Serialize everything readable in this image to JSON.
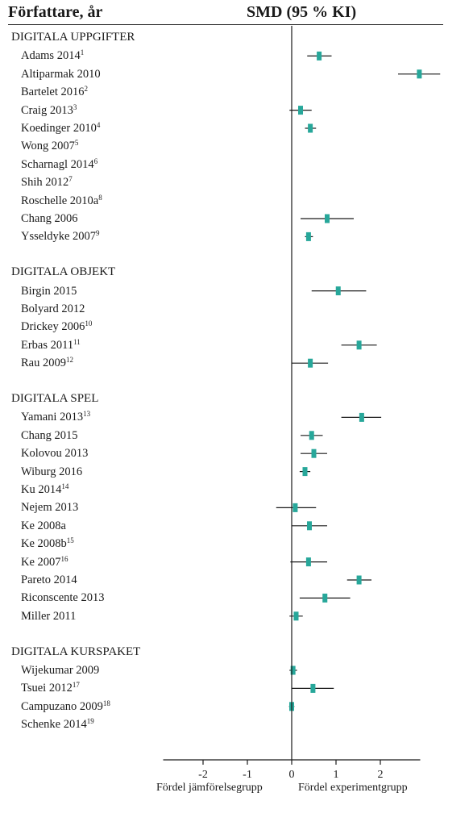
{
  "header": {
    "author_col": "Författare, år",
    "effect_col": "SMD (95 % KI)"
  },
  "footer": {
    "left": "Fördel jämförelsegrupp",
    "right": "Fördel experimentgrupp"
  },
  "colors": {
    "marker": "#27a79a",
    "line": "#1a1a1a"
  },
  "chart_data": {
    "type": "forest",
    "xlim": [
      -2.9,
      2.9
    ],
    "xticks": [
      -2,
      -1,
      0,
      1,
      2
    ],
    "xtick_labels": [
      "-2",
      "-1",
      "0",
      "1",
      "2"
    ],
    "reference_line": 0,
    "groups": [
      {
        "label": "DIGITALA UPPGIFTER",
        "studies": [
          {
            "name": "Adams 2014",
            "note": "1",
            "smd": 0.62,
            "lo": 0.35,
            "hi": 0.9
          },
          {
            "name": "Altiparmak 2010",
            "note": "",
            "smd": 2.88,
            "lo": 2.4,
            "hi": 3.35
          },
          {
            "name": "Bartelet 2016",
            "note": "2",
            "smd": null,
            "lo": null,
            "hi": null
          },
          {
            "name": "Craig 2013",
            "note": "3",
            "smd": 0.2,
            "lo": -0.05,
            "hi": 0.45
          },
          {
            "name": "Koedinger 2010",
            "note": "4",
            "smd": 0.42,
            "lo": 0.3,
            "hi": 0.55
          },
          {
            "name": "Wong 2007",
            "note": "5",
            "smd": null,
            "lo": null,
            "hi": null
          },
          {
            "name": "Scharnagl 2014",
            "note": "6",
            "smd": null,
            "lo": null,
            "hi": null
          },
          {
            "name": "Shih 2012",
            "note": "7",
            "smd": null,
            "lo": null,
            "hi": null
          },
          {
            "name": "Roschelle 2010a",
            "note": "8",
            "smd": null,
            "lo": null,
            "hi": null
          },
          {
            "name": "Chang 2006",
            "note": "",
            "smd": 0.8,
            "lo": 0.2,
            "hi": 1.4
          },
          {
            "name": "Ysseldyke 2007",
            "note": "9",
            "smd": 0.38,
            "lo": 0.3,
            "hi": 0.48
          }
        ]
      },
      {
        "label": "DIGITALA OBJEKT",
        "studies": [
          {
            "name": "Birgin 2015",
            "note": "",
            "smd": 1.05,
            "lo": 0.45,
            "hi": 1.68
          },
          {
            "name": "Bolyard 2012",
            "note": "",
            "smd": null,
            "lo": null,
            "hi": null
          },
          {
            "name": "Drickey 2006",
            "note": "10",
            "smd": null,
            "lo": null,
            "hi": null
          },
          {
            "name": "Erbas 2011",
            "note": "11",
            "smd": 1.52,
            "lo": 1.12,
            "hi": 1.92
          },
          {
            "name": "Rau 2009",
            "note": "12",
            "smd": 0.42,
            "lo": 0.0,
            "hi": 0.82
          }
        ]
      },
      {
        "label": "DIGITALA SPEL",
        "studies": [
          {
            "name": "Yamani 2013",
            "note": "13",
            "smd": 1.58,
            "lo": 1.12,
            "hi": 2.02
          },
          {
            "name": "Chang 2015",
            "note": "",
            "smd": 0.45,
            "lo": 0.2,
            "hi": 0.7
          },
          {
            "name": "Kolovou 2013",
            "note": "",
            "smd": 0.5,
            "lo": 0.2,
            "hi": 0.8
          },
          {
            "name": "Wiburg 2016",
            "note": "",
            "smd": 0.3,
            "lo": 0.18,
            "hi": 0.42
          },
          {
            "name": "Ku 2014",
            "note": "14",
            "smd": null,
            "lo": null,
            "hi": null
          },
          {
            "name": "Nejem 2013",
            "note": "",
            "smd": 0.08,
            "lo": -0.35,
            "hi": 0.55
          },
          {
            "name": "Ke 2008a",
            "note": "",
            "smd": 0.4,
            "lo": 0.0,
            "hi": 0.8
          },
          {
            "name": "Ke 2008b",
            "note": "15",
            "smd": null,
            "lo": null,
            "hi": null
          },
          {
            "name": "Ke 2007",
            "note": "16",
            "smd": 0.38,
            "lo": -0.03,
            "hi": 0.8
          },
          {
            "name": "Pareto 2014",
            "note": "",
            "smd": 1.52,
            "lo": 1.25,
            "hi": 1.8
          },
          {
            "name": "Riconscente 2013",
            "note": "",
            "smd": 0.75,
            "lo": 0.18,
            "hi": 1.32
          },
          {
            "name": "Miller 2011",
            "note": "",
            "smd": 0.1,
            "lo": -0.05,
            "hi": 0.25
          }
        ]
      },
      {
        "label": "DIGITALA KURSPAKET",
        "studies": [
          {
            "name": "Wijekumar 2009",
            "note": "",
            "smd": 0.03,
            "lo": -0.05,
            "hi": 0.12
          },
          {
            "name": "Tsuei 2012",
            "note": "17",
            "smd": 0.48,
            "lo": 0.0,
            "hi": 0.95
          },
          {
            "name": "Campuzano 2009",
            "note": "18",
            "smd": 0.0,
            "lo": -0.06,
            "hi": 0.06
          },
          {
            "name": "Schenke 2014",
            "note": "19",
            "smd": null,
            "lo": null,
            "hi": null
          }
        ]
      }
    ]
  }
}
